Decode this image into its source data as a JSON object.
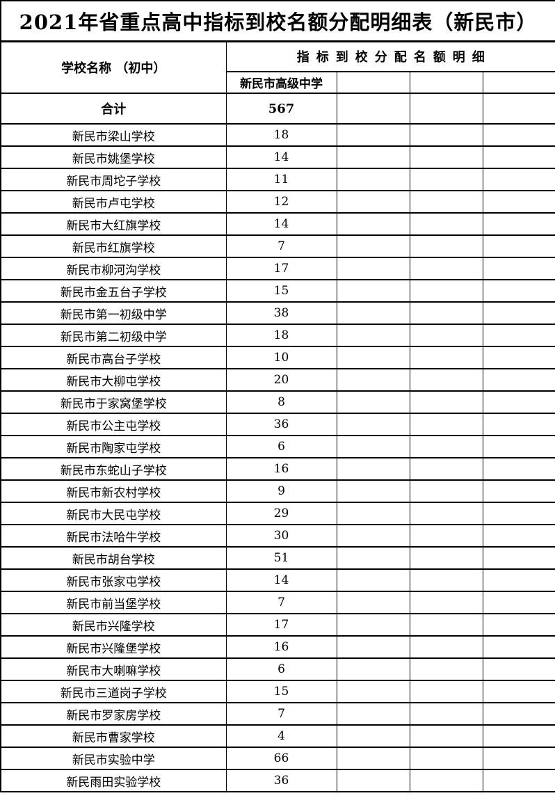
{
  "title": "2021年省重点高中指标到校名额分配明细表（新民市）",
  "headers": {
    "school_col": "学校名称 （初中）",
    "group": "指标到校分配名额明细",
    "sub": [
      "新民市高级中学",
      "",
      "",
      ""
    ]
  },
  "total": {
    "label": "合计",
    "value": "567"
  },
  "rows": [
    {
      "school": "新民市梁山学校",
      "value": "18"
    },
    {
      "school": "新民市姚堡学校",
      "value": "14"
    },
    {
      "school": "新民市周坨子学校",
      "value": "11"
    },
    {
      "school": "新民市卢屯学校",
      "value": "12"
    },
    {
      "school": "新民市大红旗学校",
      "value": "14"
    },
    {
      "school": "新民市红旗学校",
      "value": "7"
    },
    {
      "school": "新民市柳河沟学校",
      "value": "17"
    },
    {
      "school": "新民市金五台子学校",
      "value": "15"
    },
    {
      "school": "新民市第一初级中学",
      "value": "38"
    },
    {
      "school": "新民市第二初级中学",
      "value": "18"
    },
    {
      "school": "新民市高台子学校",
      "value": "10"
    },
    {
      "school": "新民市大柳屯学校",
      "value": "20"
    },
    {
      "school": "新民市于家窝堡学校",
      "value": "8"
    },
    {
      "school": "新民市公主屯学校",
      "value": "36"
    },
    {
      "school": "新民市陶家屯学校",
      "value": "6"
    },
    {
      "school": "新民市东蛇山子学校",
      "value": "16"
    },
    {
      "school": "新民市新农村学校",
      "value": "9"
    },
    {
      "school": "新民市大民屯学校",
      "value": "29"
    },
    {
      "school": "新民市法哈牛学校",
      "value": "30"
    },
    {
      "school": "新民市胡台学校",
      "value": "51"
    },
    {
      "school": "新民市张家屯学校",
      "value": "14"
    },
    {
      "school": "新民市前当堡学校",
      "value": "7"
    },
    {
      "school": "新民市兴隆学校",
      "value": "17"
    },
    {
      "school": "新民市兴隆堡学校",
      "value": "16"
    },
    {
      "school": "新民市大喇嘛学校",
      "value": "6"
    },
    {
      "school": "新民市三道岗子学校",
      "value": "15"
    },
    {
      "school": "新民市罗家房学校",
      "value": "7"
    },
    {
      "school": "新民市曹家学校",
      "value": "4"
    },
    {
      "school": "新民市实验中学",
      "value": "66"
    },
    {
      "school": "新民雨田实验学校",
      "value": "36"
    }
  ],
  "colors": {
    "border": "#000000",
    "background": "#ffffff",
    "text": "#000000"
  }
}
